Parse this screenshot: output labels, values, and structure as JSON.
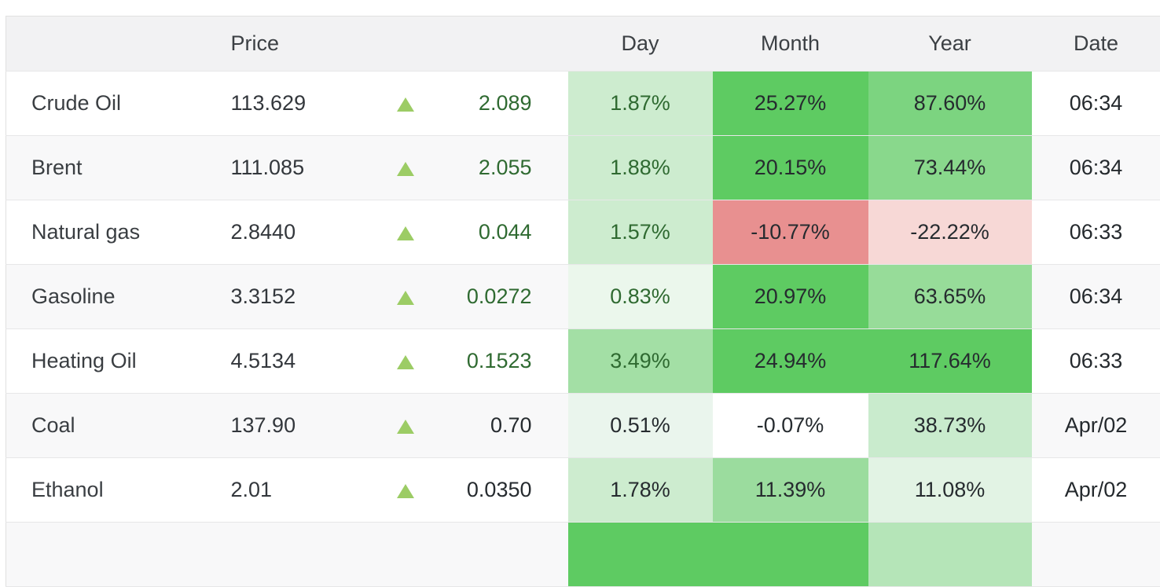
{
  "table": {
    "headers": {
      "name": "",
      "price": "Price",
      "day": "Day",
      "month": "Month",
      "year": "Year",
      "date": "Date"
    },
    "rows": [
      {
        "name": "Crude Oil",
        "price": "113.629",
        "direction": "up",
        "change": "2.089",
        "day": "1.87%",
        "month": "25.27%",
        "year": "87.60%",
        "date": "06:34",
        "live": true,
        "colors": {
          "day": "#cdeccf",
          "month": "#5ecb62",
          "year": "#7cd480"
        }
      },
      {
        "name": "Brent",
        "price": "111.085",
        "direction": "up",
        "change": "2.055",
        "day": "1.88%",
        "month": "20.15%",
        "year": "73.44%",
        "date": "06:34",
        "live": true,
        "colors": {
          "day": "#cdeccf",
          "month": "#5ecb62",
          "year": "#89d88c"
        }
      },
      {
        "name": "Natural gas",
        "price": "2.8440",
        "direction": "up",
        "change": "0.044",
        "day": "1.57%",
        "month": "-10.77%",
        "year": "-22.22%",
        "date": "06:33",
        "live": true,
        "colors": {
          "day": "#cdeccf",
          "month": "#e89090",
          "year": "#f7d8d6"
        }
      },
      {
        "name": "Gasoline",
        "price": "3.3152",
        "direction": "up",
        "change": "0.0272",
        "day": "0.83%",
        "month": "20.97%",
        "year": "63.65%",
        "date": "06:34",
        "live": true,
        "colors": {
          "day": "#ebf7ec",
          "month": "#5ecb62",
          "year": "#97dc99"
        }
      },
      {
        "name": "Heating Oil",
        "price": "4.5134",
        "direction": "up",
        "change": "0.1523",
        "day": "3.49%",
        "month": "24.94%",
        "year": "117.64%",
        "date": "06:33",
        "live": true,
        "colors": {
          "day": "#a3dfa5",
          "month": "#5ecb62",
          "year": "#5ecb62"
        }
      },
      {
        "name": "Coal",
        "price": "137.90",
        "direction": "up",
        "change": "0.70",
        "day": "0.51%",
        "month": "-0.07%",
        "year": "38.73%",
        "date": "Apr/02",
        "live": false,
        "colors": {
          "day": "#eaf5ed",
          "month": "#ffffff",
          "year": "#c9ebcd"
        }
      },
      {
        "name": "Ethanol",
        "price": "2.01",
        "direction": "up",
        "change": "0.0350",
        "day": "1.78%",
        "month": "11.39%",
        "year": "11.08%",
        "date": "Apr/02",
        "live": false,
        "colors": {
          "day": "#cdeccf",
          "month": "#9bdc9e",
          "year": "#e2f3e4"
        }
      }
    ],
    "partial_row": {
      "colors": {
        "day": "#5ecb62",
        "month": "#5ecb62",
        "year": "#b5e5b8"
      }
    }
  },
  "palette": {
    "green_text": "#2f6a31",
    "dark_text": "#262b2f",
    "triangle_green": "#9ccc65"
  }
}
